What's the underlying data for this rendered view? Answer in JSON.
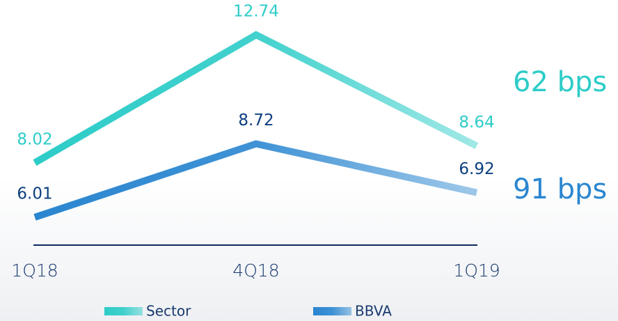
{
  "chart_data": {
    "type": "line",
    "categories": [
      "1Q18",
      "4Q18",
      "1Q19"
    ],
    "series": [
      {
        "name": "Sector",
        "color": "#2dccc8",
        "label_color": "#2dccc8",
        "values": [
          8.02,
          12.74,
          8.64
        ]
      },
      {
        "name": "BBVA",
        "color": "#2a86d0",
        "label_color": "#0b3f7f",
        "values": [
          6.01,
          8.72,
          6.92
        ]
      }
    ],
    "annotations": [
      "62 bps",
      "91 bps"
    ]
  }
}
